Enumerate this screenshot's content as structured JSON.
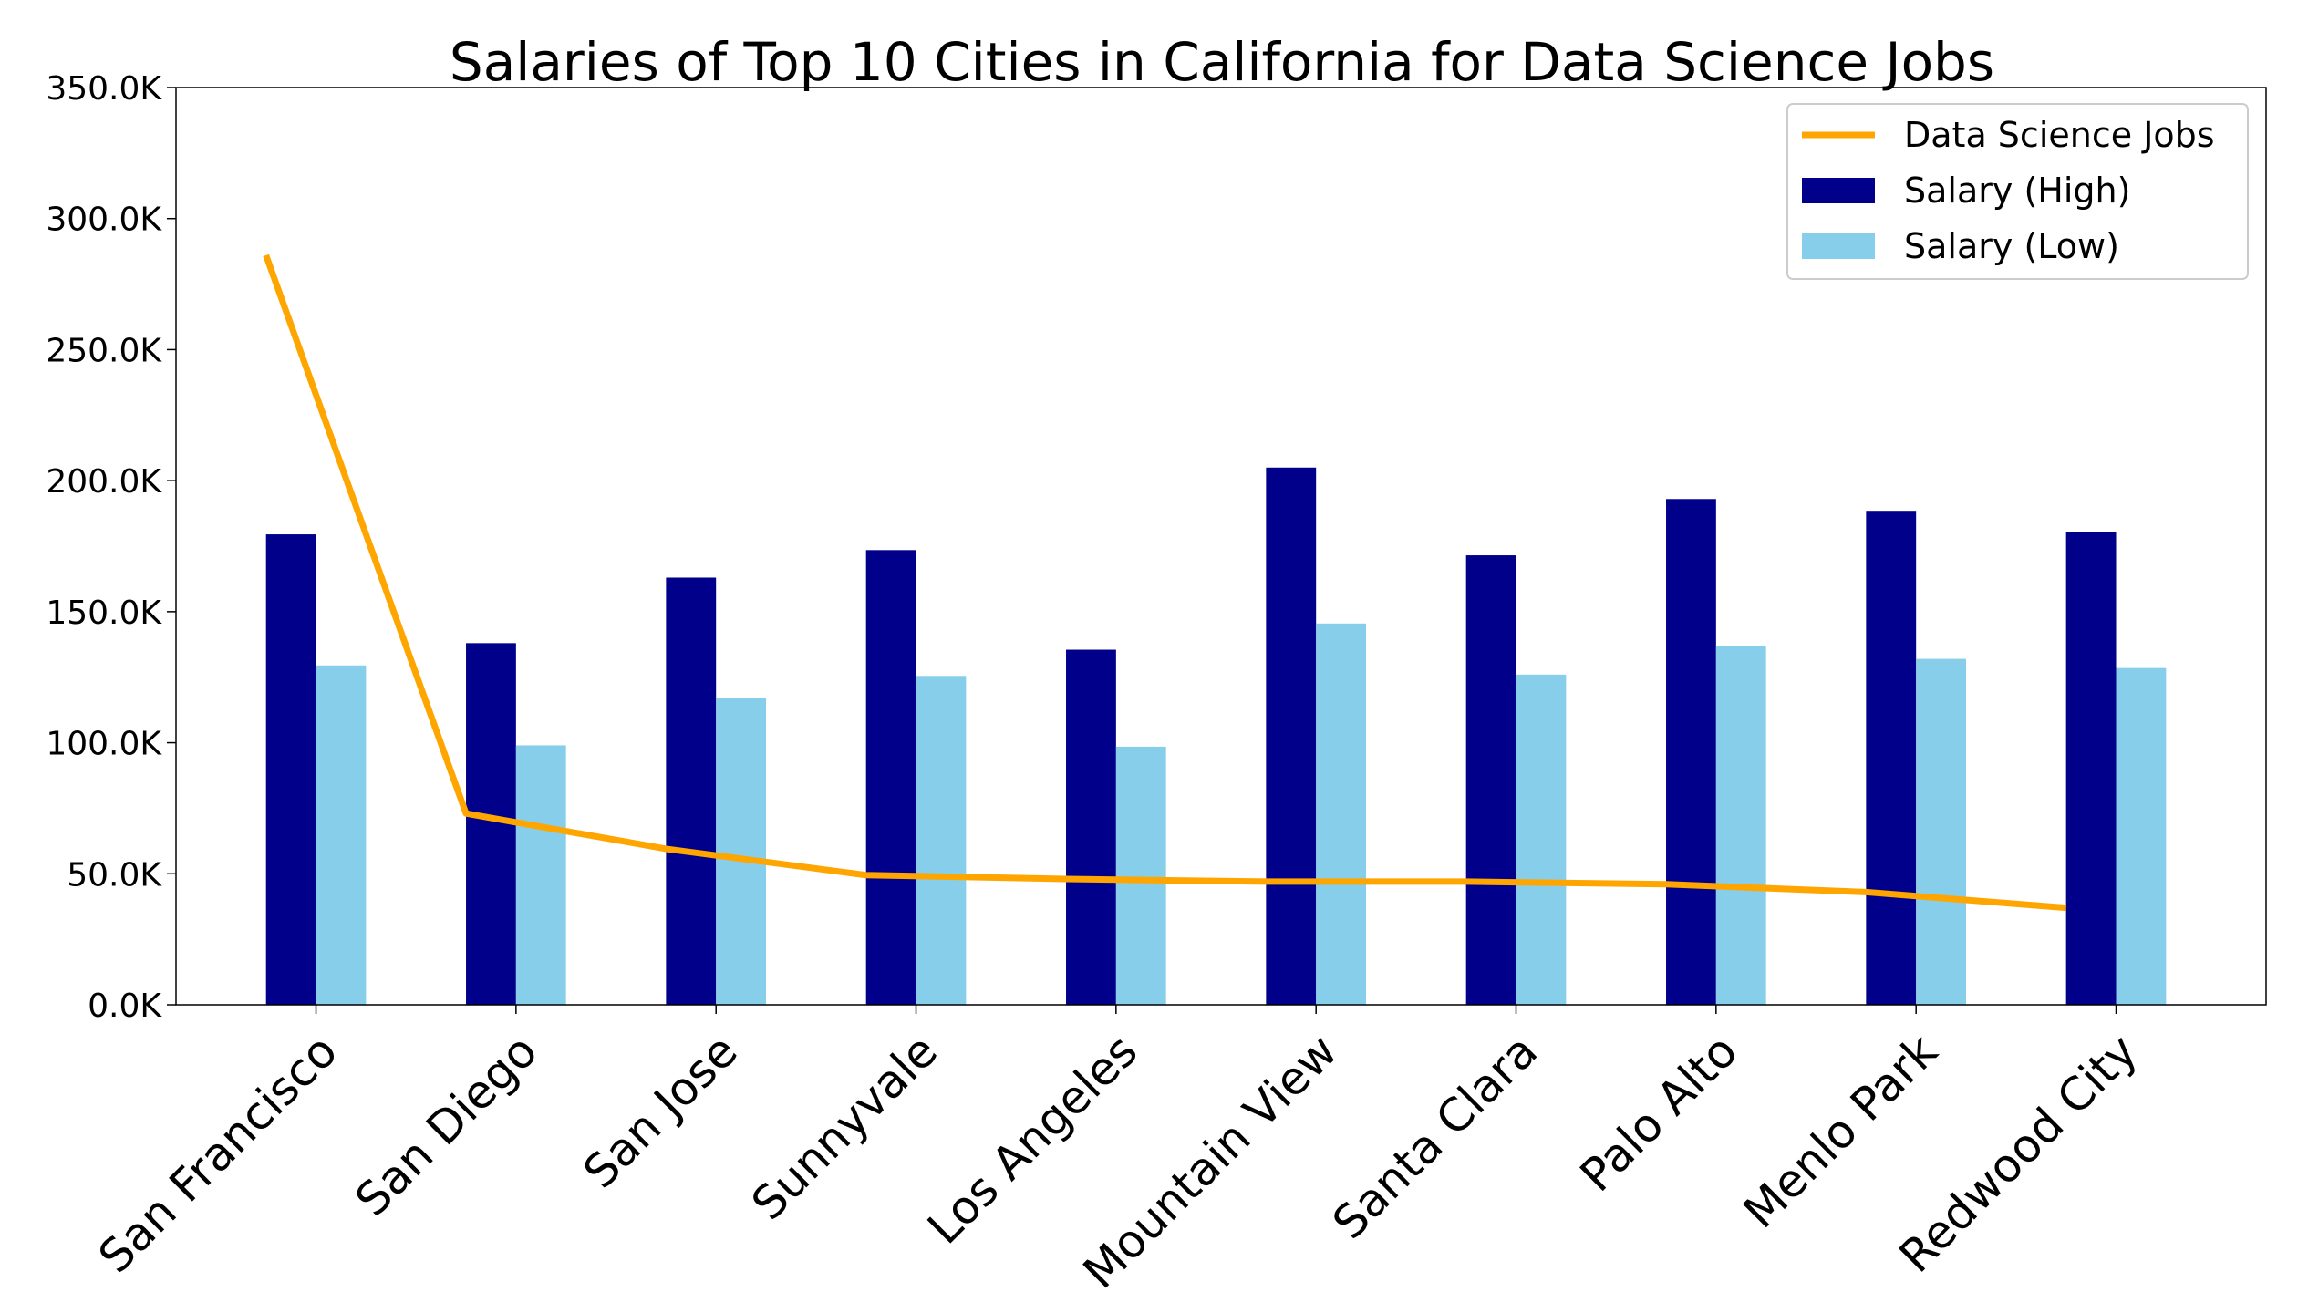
{
  "chart_data": {
    "type": "bar",
    "title": "Salaries of Top 10 Cities in California for Data Science Jobs",
    "xlabel": "",
    "ylabel": "",
    "categories": [
      "San Francisco",
      "San Diego",
      "San Jose",
      "Sunnyvale",
      "Los Angeles",
      "Mountain View",
      "Santa Clara",
      "Palo Alto",
      "Menlo Park",
      "Redwood City"
    ],
    "series": [
      {
        "name": "Salary (High)",
        "type": "bar",
        "color": "#00008b",
        "values": [
          179500,
          138000,
          163000,
          173500,
          135500,
          205000,
          171500,
          193000,
          188500,
          180500
        ]
      },
      {
        "name": "Salary (Low)",
        "type": "bar",
        "color": "#87ceeb",
        "values": [
          129500,
          99000,
          117000,
          125500,
          98500,
          145500,
          126000,
          137000,
          132000,
          128500
        ]
      },
      {
        "name": "Data Science Jobs",
        "type": "line",
        "color": "#ffa500",
        "values": [
          286000,
          73000,
          59500,
          49500,
          48000,
          47000,
          47000,
          46000,
          43000,
          37000
        ]
      }
    ],
    "ylim": [
      0,
      350000
    ],
    "yticks": [
      0,
      50000,
      100000,
      150000,
      200000,
      250000,
      300000,
      350000
    ],
    "ytick_labels": [
      "0.0K",
      "50.0K",
      "100.0K",
      "150.0K",
      "200.0K",
      "250.0K",
      "300.0K",
      "350.0K"
    ],
    "legend_placement": "top-right",
    "legend_order": [
      "Data Science Jobs",
      "Salary (High)",
      "Salary (Low)"
    ],
    "grid": false
  }
}
